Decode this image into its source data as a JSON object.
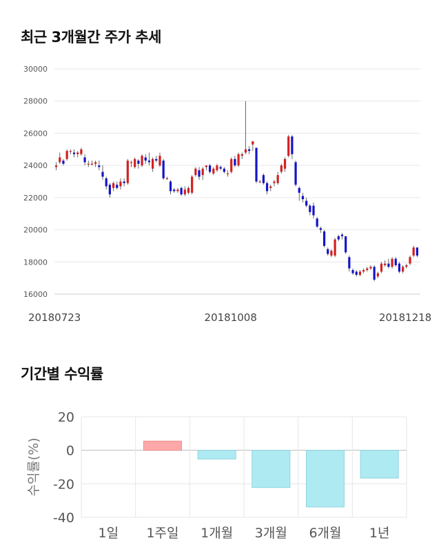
{
  "sections": {
    "price_title": "최근 3개월간 주가 추세",
    "return_title": "기간별 수익률"
  },
  "colors": {
    "up": "#d42020",
    "down": "#1414c8",
    "grid": "#e6e6e6",
    "positive_bar": "#ffa8aa",
    "negative_bar": "#aeeaf2"
  },
  "chart_data": [
    {
      "type": "candlestick",
      "title": "",
      "ylim": [
        16000,
        30000
      ],
      "yticks": [
        "30000",
        "28000",
        "26000",
        "24000",
        "22000",
        "20000",
        "18000",
        "16000"
      ],
      "xtick_labels": [
        "20180723",
        "20181008",
        "20181218"
      ],
      "candles": [
        [
          23900,
          24000,
          23700,
          24200
        ],
        [
          24200,
          24500,
          24100,
          24800
        ],
        [
          24300,
          24100,
          24000,
          24400
        ],
        [
          24400,
          24900,
          24300,
          25000
        ],
        [
          24900,
          24900,
          24700,
          25000
        ],
        [
          24800,
          24700,
          24500,
          25000
        ],
        [
          24700,
          24800,
          24500,
          24900
        ],
        [
          24700,
          25000,
          24600,
          25100
        ],
        [
          24500,
          24200,
          24000,
          24700
        ],
        [
          24100,
          24100,
          23900,
          24300
        ],
        [
          24100,
          24100,
          24000,
          24300
        ],
        [
          24100,
          24200,
          23900,
          24300
        ],
        [
          24000,
          23900,
          23700,
          24300
        ],
        [
          23600,
          23300,
          23100,
          24000
        ],
        [
          23200,
          22700,
          22500,
          23300
        ],
        [
          22800,
          22200,
          22000,
          22900
        ],
        [
          22600,
          22900,
          22400,
          23000
        ],
        [
          22800,
          22600,
          22500,
          23000
        ],
        [
          22700,
          23000,
          22500,
          23200
        ],
        [
          23000,
          22900,
          22700,
          23200
        ],
        [
          22900,
          24300,
          22800,
          24400
        ],
        [
          24200,
          24200,
          23900,
          24300
        ],
        [
          23900,
          24400,
          23800,
          24500
        ],
        [
          24300,
          24100,
          23800,
          24400
        ],
        [
          24000,
          24600,
          23900,
          24700
        ],
        [
          24500,
          24300,
          24100,
          24700
        ],
        [
          24300,
          24200,
          24000,
          24800
        ],
        [
          23800,
          24400,
          23600,
          24500
        ],
        [
          24400,
          24300,
          24200,
          24600
        ],
        [
          24000,
          24600,
          23900,
          24800
        ],
        [
          24300,
          23200,
          23100,
          24400
        ],
        [
          23200,
          23200,
          23100,
          23300
        ],
        [
          23000,
          22400,
          22200,
          23100
        ],
        [
          22500,
          22400,
          22300,
          22600
        ],
        [
          22400,
          22500,
          22300,
          22600
        ],
        [
          22600,
          22200,
          22100,
          22700
        ],
        [
          22200,
          22500,
          22100,
          22700
        ],
        [
          22300,
          22600,
          22200,
          22700
        ],
        [
          22300,
          23300,
          22200,
          23400
        ],
        [
          23400,
          23800,
          23300,
          23900
        ],
        [
          23700,
          23300,
          23100,
          23900
        ],
        [
          23400,
          23800,
          23100,
          23900
        ],
        [
          23900,
          24000,
          23700,
          24000
        ],
        [
          24000,
          23600,
          23500,
          24100
        ],
        [
          23500,
          23800,
          23400,
          23900
        ],
        [
          23700,
          24000,
          23600,
          24100
        ],
        [
          23900,
          23800,
          23700,
          24000
        ],
        [
          23800,
          23600,
          23500,
          23900
        ],
        [
          23500,
          23500,
          23300,
          23700
        ],
        [
          23600,
          24400,
          23500,
          24500
        ],
        [
          24400,
          24000,
          23900,
          24600
        ],
        [
          24000,
          24700,
          23900,
          24800
        ],
        [
          24600,
          24700,
          24400,
          24800
        ],
        [
          24800,
          25000,
          24700,
          28000
        ],
        [
          25000,
          24900,
          24700,
          25200
        ],
        [
          25300,
          25500,
          24900,
          25500
        ],
        [
          25100,
          23000,
          22900,
          25100
        ],
        [
          23000,
          23000,
          22900,
          23100
        ],
        [
          23400,
          22900,
          22800,
          23500
        ],
        [
          22900,
          22400,
          22200,
          23000
        ],
        [
          22600,
          22700,
          22400,
          22800
        ],
        [
          22900,
          23000,
          22700,
          23100
        ],
        [
          22900,
          23400,
          22800,
          23600
        ],
        [
          23600,
          24000,
          23500,
          24100
        ],
        [
          23800,
          24400,
          23600,
          24500
        ],
        [
          24600,
          25800,
          24500,
          25900
        ],
        [
          25800,
          24700,
          24400,
          25900
        ],
        [
          24200,
          22800,
          22700,
          24300
        ],
        [
          22600,
          22300,
          21800,
          22700
        ],
        [
          22100,
          21900,
          21700,
          22300
        ],
        [
          21800,
          21500,
          21400,
          22000
        ],
        [
          21500,
          21100,
          20900,
          21600
        ],
        [
          21500,
          20900,
          20700,
          21700
        ],
        [
          20700,
          20200,
          20100,
          20800
        ],
        [
          20100,
          20000,
          19800,
          20200
        ],
        [
          19900,
          19000,
          18900,
          20000
        ],
        [
          18800,
          18500,
          18400,
          18900
        ],
        [
          18400,
          18700,
          18300,
          18800
        ],
        [
          18400,
          19400,
          18300,
          19500
        ],
        [
          19600,
          19400,
          19300,
          19700
        ],
        [
          19700,
          19600,
          19400,
          19800
        ],
        [
          19600,
          18600,
          18500,
          19600
        ],
        [
          18300,
          17600,
          17400,
          18400
        ],
        [
          17500,
          17300,
          17200,
          17600
        ],
        [
          17400,
          17200,
          17100,
          17500
        ],
        [
          17200,
          17400,
          17100,
          17500
        ],
        [
          17400,
          17500,
          17300,
          17600
        ],
        [
          17500,
          17600,
          17400,
          17700
        ],
        [
          17600,
          17700,
          17500,
          17800
        ],
        [
          17700,
          16900,
          16800,
          17800
        ],
        [
          17100,
          17300,
          17000,
          17400
        ],
        [
          17400,
          17900,
          17300,
          18000
        ],
        [
          17800,
          17900,
          17700,
          18100
        ],
        [
          17900,
          17700,
          17600,
          18200
        ],
        [
          17700,
          18200,
          17600,
          18300
        ],
        [
          18200,
          17800,
          17700,
          18300
        ],
        [
          17900,
          17400,
          17300,
          18000
        ],
        [
          17400,
          17700,
          17300,
          17800
        ],
        [
          17700,
          17800,
          17600,
          17900
        ],
        [
          17900,
          18300,
          17800,
          18400
        ],
        [
          18400,
          18900,
          18300,
          19000
        ],
        [
          18900,
          18400,
          18300,
          18900
        ]
      ]
    },
    {
      "type": "bar",
      "title": "",
      "ylabel": "수익률(%)",
      "ylim": [
        -40,
        20
      ],
      "yticks": [
        "20",
        "0",
        "-20",
        "-40"
      ],
      "categories": [
        "1일",
        "1주일",
        "1개월",
        "3개월",
        "6개월",
        "1년"
      ],
      "values": [
        0,
        5.5,
        -5.2,
        -22.2,
        -33.8,
        -16.6
      ]
    }
  ]
}
